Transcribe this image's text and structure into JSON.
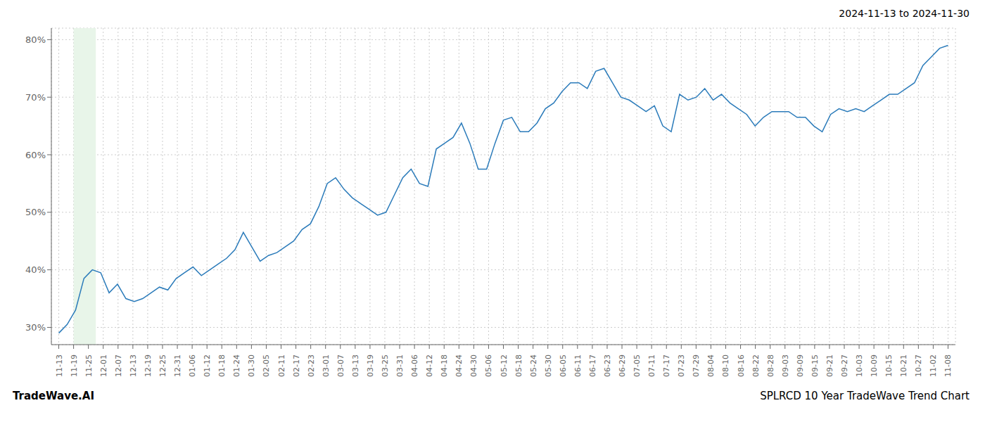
{
  "chart_data": {
    "type": "line",
    "title": "2024-11-13 to 2024-11-30",
    "footer_left": "TradeWave.AI",
    "footer_right": "SPLRCD 10 Year TradeWave Trend Chart",
    "grid": true,
    "xlim": [
      -0.5,
      60.5
    ],
    "xticks": [
      {
        "value": 0,
        "label": "11-13"
      },
      {
        "value": 1,
        "label": "11-19"
      },
      {
        "value": 2,
        "label": "11-25"
      },
      {
        "value": 3,
        "label": "12-01"
      },
      {
        "value": 4,
        "label": "12-07"
      },
      {
        "value": 5,
        "label": "12-13"
      },
      {
        "value": 6,
        "label": "12-19"
      },
      {
        "value": 7,
        "label": "12-25"
      },
      {
        "value": 8,
        "label": "12-31"
      },
      {
        "value": 9,
        "label": "01-06"
      },
      {
        "value": 10,
        "label": "01-12"
      },
      {
        "value": 11,
        "label": "01-18"
      },
      {
        "value": 12,
        "label": "01-24"
      },
      {
        "value": 13,
        "label": "01-30"
      },
      {
        "value": 14,
        "label": "02-05"
      },
      {
        "value": 15,
        "label": "02-11"
      },
      {
        "value": 16,
        "label": "02-17"
      },
      {
        "value": 17,
        "label": "02-23"
      },
      {
        "value": 18,
        "label": "03-01"
      },
      {
        "value": 19,
        "label": "03-07"
      },
      {
        "value": 20,
        "label": "03-13"
      },
      {
        "value": 21,
        "label": "03-19"
      },
      {
        "value": 22,
        "label": "03-25"
      },
      {
        "value": 23,
        "label": "03-31"
      },
      {
        "value": 24,
        "label": "04-06"
      },
      {
        "value": 25,
        "label": "04-12"
      },
      {
        "value": 26,
        "label": "04-18"
      },
      {
        "value": 27,
        "label": "04-24"
      },
      {
        "value": 28,
        "label": "04-30"
      },
      {
        "value": 29,
        "label": "05-06"
      },
      {
        "value": 30,
        "label": "05-12"
      },
      {
        "value": 31,
        "label": "05-18"
      },
      {
        "value": 32,
        "label": "05-24"
      },
      {
        "value": 33,
        "label": "05-30"
      },
      {
        "value": 34,
        "label": "06-05"
      },
      {
        "value": 35,
        "label": "06-11"
      },
      {
        "value": 36,
        "label": "06-17"
      },
      {
        "value": 37,
        "label": "06-23"
      },
      {
        "value": 38,
        "label": "06-29"
      },
      {
        "value": 39,
        "label": "07-05"
      },
      {
        "value": 40,
        "label": "07-11"
      },
      {
        "value": 41,
        "label": "07-17"
      },
      {
        "value": 42,
        "label": "07-23"
      },
      {
        "value": 43,
        "label": "07-29"
      },
      {
        "value": 44,
        "label": "08-04"
      },
      {
        "value": 45,
        "label": "08-10"
      },
      {
        "value": 46,
        "label": "08-16"
      },
      {
        "value": 47,
        "label": "08-22"
      },
      {
        "value": 48,
        "label": "08-28"
      },
      {
        "value": 49,
        "label": "09-03"
      },
      {
        "value": 50,
        "label": "09-09"
      },
      {
        "value": 51,
        "label": "09-15"
      },
      {
        "value": 52,
        "label": "09-21"
      },
      {
        "value": 53,
        "label": "09-27"
      },
      {
        "value": 54,
        "label": "10-03"
      },
      {
        "value": 55,
        "label": "10-09"
      },
      {
        "value": 56,
        "label": "10-15"
      },
      {
        "value": 57,
        "label": "10-21"
      },
      {
        "value": 58,
        "label": "10-27"
      },
      {
        "value": 59,
        "label": "11-02"
      },
      {
        "value": 60,
        "label": "11-08"
      }
    ],
    "ylim": [
      27,
      82
    ],
    "yticks": [
      {
        "value": 30,
        "label": "30%"
      },
      {
        "value": 40,
        "label": "40%"
      },
      {
        "value": 50,
        "label": "50%"
      },
      {
        "value": 60,
        "label": "60%"
      },
      {
        "value": 70,
        "label": "70%"
      },
      {
        "value": 80,
        "label": "80%"
      }
    ],
    "highlight": {
      "x": [
        1.0,
        2.5
      ],
      "color": "#e8f5e9"
    },
    "color": "#2b7bba",
    "x": [
      0,
      0.566,
      1.1321,
      1.6981,
      2.2642,
      2.8302,
      3.3962,
      3.9623,
      4.5283,
      5.0943,
      5.6604,
      6.2264,
      6.7925,
      7.3585,
      7.9245,
      8.4906,
      9.0566,
      9.6226,
      10.1887,
      10.7547,
      11.3208,
      11.8868,
      12.4528,
      13.0189,
      13.5849,
      14.1509,
      14.717,
      15.283,
      15.8491,
      16.4151,
      16.9811,
      17.5472,
      18.1132,
      18.6792,
      19.2453,
      19.8113,
      20.3774,
      20.9434,
      21.5094,
      22.0755,
      22.6415,
      23.2075,
      23.7736,
      24.3396,
      24.9057,
      25.4717,
      26.0377,
      26.6038,
      27.1698,
      27.7358,
      28.3019,
      28.8679,
      29.434,
      30.0,
      30.566,
      31.1321,
      31.6981,
      32.2642,
      32.8302,
      33.3962,
      33.9623,
      34.5283,
      35.0943,
      35.6604,
      36.2264,
      36.7925,
      37.3585,
      37.9245,
      38.4906,
      39.0566,
      39.6226,
      40.1887,
      40.7547,
      41.3208,
      41.8868,
      42.4528,
      43.0189,
      43.5849,
      44.1509,
      44.717,
      45.283,
      45.8491,
      46.4151,
      46.9811,
      47.5472,
      48.1132,
      48.6792,
      49.2453,
      49.8113,
      50.3774,
      50.9434,
      51.5094,
      52.0755,
      52.6415,
      53.2075,
      53.7736,
      54.3396,
      54.9057,
      55.4717,
      56.0377,
      56.6038,
      57.1698,
      57.7358,
      58.3019,
      58.8679,
      59.434,
      60.0
    ],
    "values": [
      29.0,
      30.5,
      33.0,
      38.5,
      40.0,
      39.5,
      36.0,
      37.5,
      35.0,
      34.5,
      35.0,
      36.0,
      37.0,
      36.5,
      38.5,
      39.5,
      40.5,
      39.0,
      40.0,
      41.0,
      42.0,
      43.5,
      46.5,
      44.0,
      41.5,
      42.5,
      43.0,
      44.0,
      45.0,
      47.0,
      48.0,
      51.0,
      55.0,
      56.0,
      54.0,
      52.5,
      51.5,
      50.5,
      49.5,
      50.0,
      53.0,
      56.0,
      57.5,
      55.0,
      54.5,
      61.0,
      62.0,
      63.0,
      65.5,
      62.0,
      57.5,
      57.5,
      62.0,
      66.0,
      66.5,
      64.0,
      64.0,
      65.5,
      68.0,
      69.0,
      71.0,
      72.5,
      72.5,
      71.5,
      74.5,
      75.0,
      72.5,
      70.0,
      69.5,
      68.5,
      67.5,
      68.5,
      65.0,
      64.0,
      70.5,
      69.5,
      70.0,
      71.5,
      69.5,
      70.5,
      69.0,
      68.0,
      67.0,
      65.0,
      66.5,
      67.5,
      67.5,
      67.5,
      66.5,
      66.5,
      65.0,
      64.0,
      67.0,
      68.0,
      67.5,
      68.0,
      67.5,
      68.5,
      69.5,
      70.5,
      70.5,
      71.5,
      72.5,
      75.5,
      77.0,
      78.5,
      79.0
    ]
  }
}
